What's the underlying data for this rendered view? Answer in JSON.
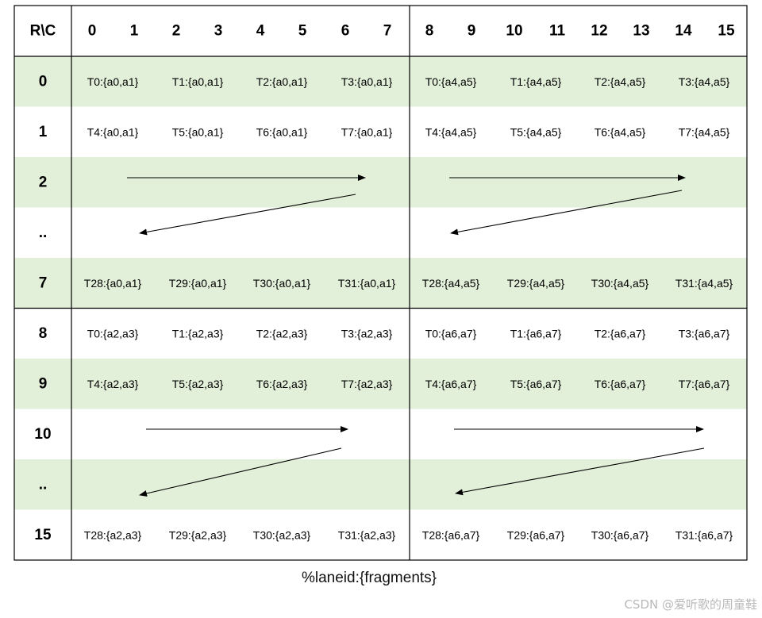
{
  "header": {
    "corner": "R\\C",
    "columns": [
      "0",
      "1",
      "2",
      "3",
      "4",
      "5",
      "6",
      "7",
      "8",
      "9",
      "10",
      "11",
      "12",
      "13",
      "14",
      "15"
    ]
  },
  "rows": [
    {
      "label": "0",
      "cells": [
        "T0:{a0,a1}",
        "T1:{a0,a1}",
        "T2:{a0,a1}",
        "T3:{a0,a1}",
        "T0:{a4,a5}",
        "T1:{a4,a5}",
        "T2:{a4,a5}",
        "T3:{a4,a5}"
      ]
    },
    {
      "label": "1",
      "cells": [
        "T4:{a0,a1}",
        "T5:{a0,a1}",
        "T6:{a0,a1}",
        "T7:{a0,a1}",
        "T4:{a4,a5}",
        "T5:{a4,a5}",
        "T6:{a4,a5}",
        "T7:{a4,a5}"
      ]
    },
    {
      "label": "2",
      "cells": []
    },
    {
      "label": "..",
      "cells": []
    },
    {
      "label": "7",
      "cells": [
        "T28:{a0,a1}",
        "T29:{a0,a1}",
        "T30:{a0,a1}",
        "T31:{a0,a1}",
        "T28:{a4,a5}",
        "T29:{a4,a5}",
        "T30:{a4,a5}",
        "T31:{a4,a5}"
      ]
    },
    {
      "label": "8",
      "cells": [
        "T0:{a2,a3}",
        "T1:{a2,a3}",
        "T2:{a2,a3}",
        "T3:{a2,a3}",
        "T0:{a6,a7}",
        "T1:{a6,a7}",
        "T2:{a6,a7}",
        "T3:{a6,a7}"
      ]
    },
    {
      "label": "9",
      "cells": [
        "T4:{a2,a3}",
        "T5:{a2,a3}",
        "T6:{a2,a3}",
        "T7:{a2,a3}",
        "T4:{a6,a7}",
        "T5:{a6,a7}",
        "T6:{a6,a7}",
        "T7:{a6,a7}"
      ]
    },
    {
      "label": "10",
      "cells": []
    },
    {
      "label": "..",
      "cells": []
    },
    {
      "label": "15",
      "cells": [
        "T28:{a2,a3}",
        "T29:{a2,a3}",
        "T30:{a2,a3}",
        "T31:{a2,a3}",
        "T28:{a6,a7}",
        "T29:{a6,a7}",
        "T30:{a6,a7}",
        "T31:{a6,a7}"
      ]
    }
  ],
  "caption": "%laneid:{fragments}",
  "watermark": "CSDN @爱听歌的周童鞋",
  "colors": {
    "band": "#e2efd9",
    "line": "#000000",
    "text": "#000000"
  }
}
